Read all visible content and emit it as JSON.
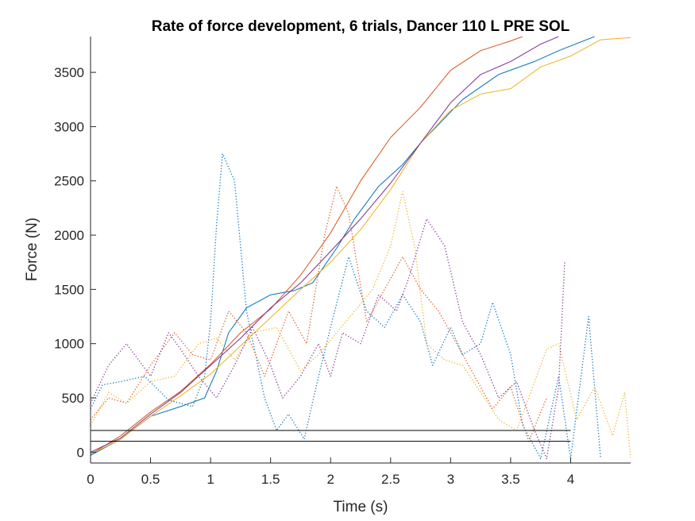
{
  "chart_data": {
    "type": "line",
    "title": "Rate of force development, 6 trials, Dancer 110 L PRE SOL",
    "xlabel": "Time (s)",
    "ylabel": "Force (N)",
    "xlim": [
      0,
      4.5
    ],
    "ylim": [
      -100,
      3830
    ],
    "grid": false,
    "legend": "none",
    "x_ticks": [
      0,
      0.5,
      1,
      1.5,
      2,
      2.5,
      3,
      3.5,
      4
    ],
    "x_tick_labels": [
      "0",
      "0.5",
      "1",
      "1.5",
      "2",
      "2.5",
      "3",
      "3.5",
      "4"
    ],
    "y_ticks": [
      0,
      500,
      1000,
      1500,
      2000,
      2500,
      3000,
      3500
    ],
    "y_tick_labels": [
      "0",
      "500",
      "1000",
      "1500",
      "2000",
      "2500",
      "3000",
      "3500"
    ],
    "threshold_lines": [
      {
        "y": 100,
        "x_start": 0,
        "x_end": 4,
        "color": "#000000"
      },
      {
        "y": 200,
        "x_start": 0,
        "x_end": 4,
        "color": "#000000"
      }
    ],
    "series": [
      {
        "style": "solid",
        "color": "#0072BD",
        "x": [
          0,
          0.25,
          0.5,
          0.75,
          0.95,
          1.05,
          1.15,
          1.3,
          1.5,
          1.7,
          1.85,
          2.05,
          2.2,
          2.4,
          2.6,
          2.75,
          2.9,
          3.1,
          3.4,
          3.7,
          3.9,
          4.2
        ],
        "y": [
          -30,
          120,
          330,
          420,
          500,
          750,
          1100,
          1330,
          1450,
          1490,
          1560,
          1880,
          2150,
          2450,
          2650,
          2850,
          3020,
          3250,
          3480,
          3600,
          3700,
          3830
        ]
      },
      {
        "style": "solid",
        "color": "#D95319",
        "x": [
          0,
          0.25,
          0.5,
          0.75,
          1.0,
          1.25,
          1.5,
          1.75,
          2.0,
          2.25,
          2.5,
          2.75,
          3.0,
          3.25,
          3.5,
          3.6
        ],
        "y": [
          -20,
          150,
          370,
          560,
          810,
          1100,
          1320,
          1630,
          2020,
          2500,
          2900,
          3180,
          3520,
          3700,
          3790,
          3830
        ]
      },
      {
        "style": "solid",
        "color": "#EDB120",
        "x": [
          0,
          0.25,
          0.5,
          0.75,
          1.0,
          1.25,
          1.5,
          1.75,
          2.0,
          2.25,
          2.5,
          2.75,
          3.0,
          3.25,
          3.5,
          3.75,
          4.0,
          4.25,
          4.5
        ],
        "y": [
          -20,
          120,
          330,
          520,
          720,
          980,
          1240,
          1500,
          1750,
          2050,
          2420,
          2850,
          3150,
          3300,
          3350,
          3550,
          3650,
          3800,
          3820
        ]
      },
      {
        "style": "solid",
        "color": "#7E2F8E",
        "x": [
          0,
          0.25,
          0.5,
          0.75,
          1.0,
          1.25,
          1.5,
          1.75,
          2.0,
          2.25,
          2.5,
          2.75,
          3.0,
          3.25,
          3.5,
          3.75,
          3.9
        ],
        "y": [
          0,
          130,
          350,
          550,
          800,
          1050,
          1330,
          1560,
          1850,
          2150,
          2480,
          2850,
          3220,
          3480,
          3600,
          3760,
          3830
        ]
      },
      {
        "style": "dotted",
        "color": "#0072BD",
        "x": [
          0,
          0.1,
          0.25,
          0.45,
          0.65,
          0.85,
          0.95,
          1.0,
          1.05,
          1.1,
          1.2,
          1.3,
          1.45,
          1.55,
          1.65,
          1.78,
          1.9,
          2.0,
          2.15,
          2.3,
          2.45,
          2.6,
          2.75,
          2.85,
          3.0,
          3.1,
          3.25,
          3.35,
          3.5,
          3.6,
          3.75,
          3.9,
          4.0,
          4.15,
          4.25
        ],
        "y": [
          400,
          620,
          650,
          700,
          480,
          420,
          700,
          1200,
          2100,
          2750,
          2500,
          1300,
          500,
          200,
          350,
          120,
          700,
          1150,
          1800,
          1300,
          1150,
          1450,
          1200,
          800,
          1150,
          900,
          1000,
          1380,
          900,
          250,
          -60,
          700,
          -60,
          1250,
          -60
        ]
      },
      {
        "style": "dotted",
        "color": "#D95319",
        "x": [
          0,
          0.15,
          0.3,
          0.5,
          0.7,
          0.85,
          1.0,
          1.15,
          1.3,
          1.45,
          1.55,
          1.65,
          1.8,
          1.95,
          2.05,
          2.15,
          2.3,
          2.45,
          2.6,
          2.75,
          2.9,
          3.05,
          3.2,
          3.35,
          3.5,
          3.65,
          3.8
        ],
        "y": [
          300,
          500,
          450,
          800,
          1100,
          900,
          850,
          1300,
          1100,
          700,
          1000,
          1300,
          1000,
          2000,
          2450,
          2200,
          1200,
          1500,
          1800,
          1500,
          1300,
          1000,
          700,
          400,
          600,
          100,
          500
        ]
      },
      {
        "style": "dotted",
        "color": "#EDB120",
        "x": [
          0,
          0.15,
          0.3,
          0.5,
          0.7,
          0.9,
          1.05,
          1.2,
          1.35,
          1.55,
          1.75,
          1.9,
          2.05,
          2.2,
          2.35,
          2.5,
          2.6,
          2.7,
          2.8,
          2.95,
          3.1,
          3.25,
          3.4,
          3.55,
          3.7,
          3.8,
          3.9,
          4.05,
          4.2,
          4.35,
          4.45,
          4.5
        ],
        "y": [
          250,
          550,
          450,
          650,
          700,
          1000,
          1050,
          850,
          1100,
          1150,
          750,
          900,
          1100,
          1300,
          1500,
          1900,
          2400,
          1900,
          1000,
          850,
          800,
          550,
          300,
          200,
          650,
          950,
          1000,
          300,
          600,
          150,
          550,
          -60
        ]
      },
      {
        "style": "dotted",
        "color": "#7E2F8E",
        "x": [
          0,
          0.15,
          0.3,
          0.5,
          0.65,
          0.75,
          0.9,
          1.05,
          1.2,
          1.35,
          1.5,
          1.6,
          1.75,
          1.9,
          2.0,
          2.1,
          2.25,
          2.4,
          2.55,
          2.65,
          2.8,
          2.95,
          3.1,
          3.25,
          3.4,
          3.55,
          3.7,
          3.8,
          3.9,
          3.95
        ],
        "y": [
          450,
          800,
          1000,
          700,
          1100,
          950,
          700,
          500,
          800,
          1150,
          800,
          500,
          700,
          1000,
          700,
          1100,
          1000,
          1450,
          1300,
          1600,
          2150,
          1900,
          1200,
          900,
          500,
          650,
          200,
          -60,
          600,
          1750
        ]
      }
    ]
  }
}
